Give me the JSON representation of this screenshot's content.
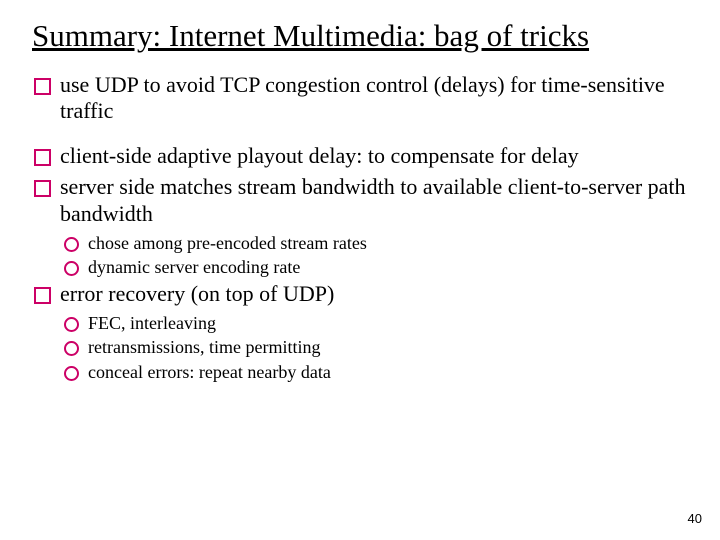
{
  "title_html": "Summary: Internet Multimedia: bag of tricks",
  "bullets": [
    {
      "text": "use UDP to avoid TCP congestion control (delays) for time-sensitive traffic",
      "sub": []
    },
    {
      "gap": true
    },
    {
      "text": "client-side adaptive playout delay: to compensate for delay",
      "sub": []
    },
    {
      "text": "server side matches stream bandwidth to available client-to-server path bandwidth",
      "sub": [
        "chose among pre-encoded stream rates",
        "dynamic server encoding rate"
      ]
    },
    {
      "text": "error recovery (on top of UDP)",
      "sub": [
        "FEC, interleaving",
        "retransmissions, time permitting",
        "conceal errors: repeat nearby data"
      ]
    }
  ],
  "page_number": "40",
  "colors": {
    "bullet_border": "#cc0066",
    "text": "#000000",
    "background": "#ffffff"
  },
  "typography": {
    "title_fontsize": 31,
    "body_fontsize": 22,
    "sub_fontsize": 18,
    "pagenum_fontsize": 13,
    "font_family": "Comic Sans MS"
  }
}
